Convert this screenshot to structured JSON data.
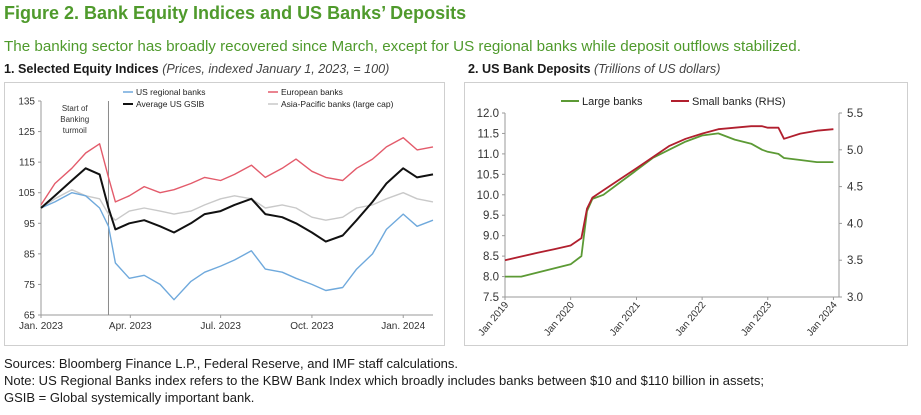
{
  "figure": {
    "title": "Figure 2. Bank Equity Indices and US Banks’ Deposits",
    "subtitle": "The banking sector has broadly recovered since March, except for US regional banks while deposit outflows stabilized."
  },
  "panels": [
    {
      "number": "1. Selected Equity Indices",
      "units": "(Prices, indexed January 1, 2023, = 100)"
    },
    {
      "number": "2. US Bank Deposits",
      "units": "(Trillions of US dollars)"
    }
  ],
  "notes": {
    "sources": "Sources: Bloomberg Finance L.P., Federal Reserve, and IMF staff calculations.",
    "note_line1": "Note: US Regional Banks index refers to the KBW Bank Index which broadly includes banks between $10 and $110 billion in assets;",
    "note_line2": "GSIB = Global systemically important bank."
  },
  "chart_data": [
    {
      "type": "line",
      "title": "1. Selected Equity Indices",
      "subtitle": "(Prices, indexed January 1, 2023, = 100)",
      "ylim": [
        65,
        135
      ],
      "yticks": [
        65,
        75,
        85,
        95,
        105,
        115,
        125,
        135
      ],
      "xlim": [
        "2023-01-01",
        "2024-01-31"
      ],
      "x_tick_labels": [
        {
          "date": "2023-01-01",
          "label": "Jan. 2023"
        },
        {
          "date": "2023-04-01",
          "label": "Apr. 2023"
        },
        {
          "date": "2023-07-01",
          "label": "Jul. 2023"
        },
        {
          "date": "2023-10-01",
          "label": "Oct. 2023"
        },
        {
          "date": "2024-01-01",
          "label": "Jan. 2024"
        }
      ],
      "grid": false,
      "legend": "top",
      "annotation": {
        "date": "2023-03-10",
        "lines": [
          "Start of",
          "Banking",
          "turmoil"
        ],
        "color": "#8a8a8a"
      },
      "series": [
        {
          "name": "US regional banks",
          "color": "#6fa9dc",
          "x": [
            "2023-01-01",
            "2023-01-15",
            "2023-02-01",
            "2023-02-15",
            "2023-03-01",
            "2023-03-10",
            "2023-03-17",
            "2023-03-31",
            "2023-04-15",
            "2023-05-01",
            "2023-05-15",
            "2023-06-01",
            "2023-06-15",
            "2023-07-01",
            "2023-07-15",
            "2023-08-01",
            "2023-08-15",
            "2023-09-01",
            "2023-09-15",
            "2023-10-01",
            "2023-10-15",
            "2023-11-01",
            "2023-11-15",
            "2023-12-01",
            "2023-12-15",
            "2024-01-01",
            "2024-01-15",
            "2024-01-31"
          ],
          "values": [
            100,
            102,
            105,
            104,
            100,
            94,
            82,
            77,
            78,
            75,
            70,
            76,
            79,
            81,
            83,
            86,
            80,
            79,
            77,
            75,
            73,
            74,
            80,
            85,
            93,
            98,
            94,
            96
          ]
        },
        {
          "name": "European banks",
          "color": "#e35b6b",
          "x": [
            "2023-01-01",
            "2023-01-15",
            "2023-02-01",
            "2023-02-15",
            "2023-03-01",
            "2023-03-10",
            "2023-03-17",
            "2023-03-31",
            "2023-04-15",
            "2023-05-01",
            "2023-05-15",
            "2023-06-01",
            "2023-06-15",
            "2023-07-01",
            "2023-07-15",
            "2023-08-01",
            "2023-08-15",
            "2023-09-01",
            "2023-09-15",
            "2023-10-01",
            "2023-10-15",
            "2023-11-01",
            "2023-11-15",
            "2023-12-01",
            "2023-12-15",
            "2024-01-01",
            "2024-01-15",
            "2024-01-31"
          ],
          "values": [
            101,
            108,
            113,
            118,
            121,
            110,
            102,
            104,
            107,
            105,
            106,
            108,
            110,
            109,
            111,
            114,
            110,
            113,
            116,
            112,
            110,
            109,
            113,
            116,
            120,
            123,
            119,
            120
          ]
        },
        {
          "name": "Average US GSIB",
          "color": "#111111",
          "x": [
            "2023-01-01",
            "2023-01-15",
            "2023-02-01",
            "2023-02-15",
            "2023-03-01",
            "2023-03-10",
            "2023-03-17",
            "2023-03-31",
            "2023-04-15",
            "2023-05-01",
            "2023-05-15",
            "2023-06-01",
            "2023-06-15",
            "2023-07-01",
            "2023-07-15",
            "2023-08-01",
            "2023-08-15",
            "2023-09-01",
            "2023-09-15",
            "2023-10-01",
            "2023-10-15",
            "2023-11-01",
            "2023-11-15",
            "2023-12-01",
            "2023-12-15",
            "2024-01-01",
            "2024-01-15",
            "2024-01-31"
          ],
          "values": [
            100,
            104,
            109,
            113,
            111,
            100,
            93,
            95,
            96,
            94,
            92,
            95,
            98,
            99,
            101,
            103,
            98,
            97,
            95,
            92,
            89,
            91,
            96,
            102,
            108,
            113,
            110,
            111
          ]
        },
        {
          "name": "Asia-Pacific banks (large cap)",
          "color": "#c9c9c9",
          "x": [
            "2023-01-01",
            "2023-01-15",
            "2023-02-01",
            "2023-02-15",
            "2023-03-01",
            "2023-03-10",
            "2023-03-17",
            "2023-03-31",
            "2023-04-15",
            "2023-05-01",
            "2023-05-15",
            "2023-06-01",
            "2023-06-15",
            "2023-07-01",
            "2023-07-15",
            "2023-08-01",
            "2023-08-15",
            "2023-09-01",
            "2023-09-15",
            "2023-10-01",
            "2023-10-15",
            "2023-11-01",
            "2023-11-15",
            "2023-12-01",
            "2023-12-15",
            "2024-01-01",
            "2024-01-15",
            "2024-01-31"
          ],
          "values": [
            100,
            103,
            106,
            104,
            103,
            98,
            96,
            99,
            100,
            99,
            98,
            99,
            101,
            103,
            104,
            103,
            100,
            101,
            100,
            97,
            96,
            97,
            100,
            101,
            103,
            105,
            103,
            102
          ]
        }
      ]
    },
    {
      "type": "line",
      "title": "2. US Bank Deposits",
      "subtitle": "(Trillions of US dollars)",
      "ylim": [
        7.5,
        12.0
      ],
      "yticks": [
        7.5,
        8.0,
        8.5,
        9.0,
        9.5,
        10.0,
        10.5,
        11.0,
        11.5,
        12.0
      ],
      "y2lim": [
        3.0,
        5.5
      ],
      "y2ticks": [
        3.0,
        3.5,
        4.0,
        4.5,
        5.0,
        5.5
      ],
      "xlim": [
        "2019-01-01",
        "2024-02-01"
      ],
      "x_tick_labels": [
        {
          "date": "2019-01-01",
          "label": "Jan 2019"
        },
        {
          "date": "2020-01-01",
          "label": "Jan 2020"
        },
        {
          "date": "2021-01-01",
          "label": "Jan 2021"
        },
        {
          "date": "2022-01-01",
          "label": "Jan 2022"
        },
        {
          "date": "2023-01-01",
          "label": "Jan 2023"
        },
        {
          "date": "2024-01-01",
          "label": "Jan 2024"
        }
      ],
      "grid": false,
      "legend": "top-left",
      "series": [
        {
          "name": "Large banks",
          "color": "#5c9a35",
          "axis": "left",
          "x": [
            "2019-01-01",
            "2019-04-01",
            "2019-07-01",
            "2019-10-01",
            "2020-01-01",
            "2020-03-01",
            "2020-04-01",
            "2020-05-01",
            "2020-07-01",
            "2020-10-01",
            "2021-01-01",
            "2021-04-01",
            "2021-07-01",
            "2021-10-01",
            "2022-01-01",
            "2022-04-01",
            "2022-07-01",
            "2022-10-01",
            "2022-12-01",
            "2023-01-01",
            "2023-03-01",
            "2023-04-01",
            "2023-07-01",
            "2023-10-01",
            "2024-01-01"
          ],
          "values": [
            8.0,
            8.0,
            8.1,
            8.2,
            8.3,
            8.5,
            9.6,
            9.9,
            10.0,
            10.3,
            10.6,
            10.9,
            11.1,
            11.3,
            11.45,
            11.5,
            11.35,
            11.25,
            11.1,
            11.05,
            11.0,
            10.9,
            10.85,
            10.8,
            10.8
          ]
        },
        {
          "name": "Small banks (RHS)",
          "color": "#b11f2e",
          "axis": "right",
          "x": [
            "2019-01-01",
            "2019-04-01",
            "2019-07-01",
            "2019-10-01",
            "2020-01-01",
            "2020-03-01",
            "2020-04-01",
            "2020-05-01",
            "2020-07-01",
            "2020-10-01",
            "2021-01-01",
            "2021-04-01",
            "2021-07-01",
            "2021-10-01",
            "2022-01-01",
            "2022-04-01",
            "2022-07-01",
            "2022-10-01",
            "2022-12-01",
            "2023-01-01",
            "2023-03-01",
            "2023-04-01",
            "2023-07-01",
            "2023-10-01",
            "2024-01-01"
          ],
          "values": [
            3.5,
            3.55,
            3.6,
            3.65,
            3.7,
            3.8,
            4.2,
            4.35,
            4.45,
            4.6,
            4.75,
            4.9,
            5.05,
            5.15,
            5.22,
            5.28,
            5.3,
            5.32,
            5.32,
            5.3,
            5.3,
            5.15,
            5.22,
            5.26,
            5.28
          ]
        }
      ]
    }
  ]
}
